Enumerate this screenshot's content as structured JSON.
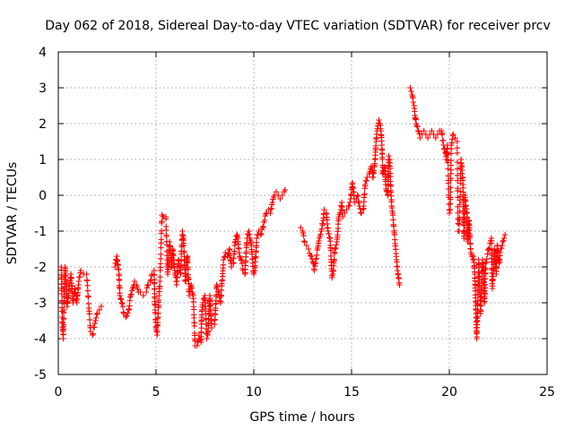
{
  "chart_data": {
    "type": "scatter",
    "title": "Day 062 of 2018, Sidereal Day-to-day VTEC variation (SDTVAR) for receiver prcv",
    "xlabel": "GPS time / hours",
    "ylabel": "SDTVAR / TECUs",
    "xlim": [
      0,
      25
    ],
    "ylim": [
      -5,
      4
    ],
    "xticks": [
      "0",
      "5",
      "10",
      "15",
      "20",
      "25"
    ],
    "yticks": [
      "-5",
      "-4",
      "-3",
      "-2",
      "-1",
      "0",
      "1",
      "2",
      "3",
      "4"
    ],
    "grid": true,
    "marker": "+",
    "color": "#ff0000",
    "series": [
      {
        "name": "SDTVAR",
        "trace": [
          [
            0.15,
            -2.0
          ],
          [
            0.2,
            -3.4
          ],
          [
            0.25,
            -4.0
          ],
          [
            0.3,
            -2.8
          ],
          [
            0.35,
            -2.0
          ],
          [
            0.4,
            -2.4
          ],
          [
            0.45,
            -3.1
          ],
          [
            0.55,
            -2.6
          ],
          [
            0.65,
            -2.2
          ],
          [
            0.75,
            -3.0
          ],
          [
            0.85,
            -2.6
          ],
          [
            0.95,
            -3.0
          ],
          [
            1.05,
            -2.4
          ],
          [
            1.15,
            -2.1
          ],
          [
            1.3,
            -2.2
          ],
          [
            1.45,
            -2.2
          ],
          [
            1.65,
            -3.8
          ],
          [
            1.75,
            -3.9
          ],
          [
            1.9,
            -3.5
          ],
          [
            2.0,
            -3.3
          ],
          [
            2.1,
            -3.2
          ],
          [
            2.2,
            -3.1
          ],
          [
            2.9,
            -2.0
          ],
          [
            3.0,
            -1.7
          ],
          [
            3.1,
            -2.2
          ],
          [
            3.15,
            -2.8
          ],
          [
            3.25,
            -3.0
          ],
          [
            3.35,
            -3.3
          ],
          [
            3.45,
            -3.4
          ],
          [
            3.6,
            -3.2
          ],
          [
            3.7,
            -2.8
          ],
          [
            3.8,
            -2.6
          ],
          [
            3.9,
            -2.4
          ],
          [
            4.0,
            -2.5
          ],
          [
            4.1,
            -2.7
          ],
          [
            4.2,
            -2.7
          ],
          [
            4.35,
            -2.8
          ],
          [
            4.5,
            -2.7
          ],
          [
            4.6,
            -2.5
          ],
          [
            4.7,
            -2.4
          ],
          [
            4.8,
            -2.2
          ],
          [
            4.9,
            -2.1
          ],
          [
            4.95,
            -3.2
          ],
          [
            5.0,
            -3.7
          ],
          [
            5.05,
            -3.9
          ],
          [
            5.1,
            -3.4
          ],
          [
            5.15,
            -2.8
          ],
          [
            5.2,
            -2.4
          ],
          [
            5.3,
            -0.55
          ],
          [
            5.35,
            -0.6
          ],
          [
            5.4,
            -0.6
          ],
          [
            5.5,
            -0.6
          ],
          [
            5.6,
            -2.2
          ],
          [
            5.7,
            -1.3
          ],
          [
            5.8,
            -2.0
          ],
          [
            5.85,
            -1.5
          ],
          [
            5.95,
            -2.1
          ],
          [
            6.05,
            -2.5
          ],
          [
            6.15,
            -1.8
          ],
          [
            6.25,
            -2.2
          ],
          [
            6.35,
            -1.0
          ],
          [
            6.4,
            -1.2
          ],
          [
            6.5,
            -2.4
          ],
          [
            6.55,
            -2.0
          ],
          [
            6.6,
            -1.7
          ],
          [
            6.7,
            -2.8
          ],
          [
            6.8,
            -2.5
          ],
          [
            6.9,
            -2.8
          ],
          [
            7.0,
            -4.2
          ],
          [
            7.1,
            -4.2
          ],
          [
            7.2,
            -3.9
          ],
          [
            7.3,
            -4.1
          ],
          [
            7.35,
            -3.2
          ],
          [
            7.4,
            -3.0
          ],
          [
            7.5,
            -2.8
          ],
          [
            7.6,
            -4.0
          ],
          [
            7.65,
            -3.9
          ],
          [
            7.75,
            -2.8
          ],
          [
            7.85,
            -3.7
          ],
          [
            8.0,
            -3.6
          ],
          [
            8.1,
            -2.5
          ],
          [
            8.2,
            -2.7
          ],
          [
            8.3,
            -3.0
          ],
          [
            8.45,
            -1.8
          ],
          [
            8.55,
            -1.6
          ],
          [
            8.65,
            -1.7
          ],
          [
            8.75,
            -1.5
          ],
          [
            8.85,
            -2.0
          ],
          [
            8.95,
            -1.9
          ],
          [
            9.05,
            -1.3
          ],
          [
            9.15,
            -1.1
          ],
          [
            9.25,
            -1.6
          ],
          [
            9.35,
            -1.8
          ],
          [
            9.45,
            -2.1
          ],
          [
            9.55,
            -2.2
          ],
          [
            9.65,
            -1.2
          ],
          [
            9.75,
            -1.0
          ],
          [
            9.85,
            -1.3
          ],
          [
            10.0,
            -2.2
          ],
          [
            10.05,
            -2.1
          ],
          [
            10.15,
            -1.2
          ],
          [
            10.25,
            -1.0
          ],
          [
            10.35,
            -1.1
          ],
          [
            10.45,
            -0.9
          ],
          [
            10.55,
            -0.7
          ],
          [
            10.65,
            -0.5
          ],
          [
            10.75,
            -0.4
          ],
          [
            10.85,
            -0.5
          ],
          [
            10.95,
            -0.2
          ],
          [
            11.05,
            0.0
          ],
          [
            11.15,
            0.1
          ],
          [
            11.25,
            0.0
          ],
          [
            11.35,
            -0.1
          ],
          [
            11.45,
            0.0
          ],
          [
            11.55,
            0.1
          ],
          [
            11.6,
            0.15
          ],
          [
            12.4,
            -0.9
          ],
          [
            12.5,
            -1.0
          ],
          [
            12.6,
            -1.3
          ],
          [
            12.7,
            -1.4
          ],
          [
            12.8,
            -1.5
          ],
          [
            12.95,
            -1.7
          ],
          [
            13.05,
            -1.9
          ],
          [
            13.1,
            -2.1
          ],
          [
            13.35,
            -1.2
          ],
          [
            13.45,
            -1.0
          ],
          [
            13.55,
            -0.7
          ],
          [
            13.6,
            -0.4
          ],
          [
            13.7,
            -0.5
          ],
          [
            13.8,
            -1.0
          ],
          [
            13.9,
            -1.2
          ],
          [
            14.0,
            -2.3
          ],
          [
            14.05,
            -2.2
          ],
          [
            14.15,
            -1.5
          ],
          [
            14.25,
            -1.3
          ],
          [
            14.35,
            -0.6
          ],
          [
            14.45,
            -0.4
          ],
          [
            14.5,
            -0.2
          ],
          [
            14.55,
            -0.6
          ],
          [
            14.65,
            -0.5
          ],
          [
            14.75,
            -0.4
          ],
          [
            14.85,
            -0.3
          ],
          [
            14.95,
            -0.1
          ],
          [
            15.05,
            0.35
          ],
          [
            15.15,
            -0.2
          ],
          [
            15.25,
            -0.1
          ],
          [
            15.3,
            0.0
          ],
          [
            15.4,
            -0.3
          ],
          [
            15.5,
            -0.5
          ],
          [
            15.6,
            -0.4
          ],
          [
            15.7,
            0.3
          ],
          [
            15.8,
            0.5
          ],
          [
            15.9,
            0.6
          ],
          [
            16.0,
            0.8
          ],
          [
            16.05,
            0.7
          ],
          [
            16.1,
            0.5
          ],
          [
            16.2,
            1.0
          ],
          [
            16.25,
            1.5
          ],
          [
            16.3,
            1.8
          ],
          [
            16.4,
            2.1
          ],
          [
            16.45,
            2.0
          ],
          [
            16.5,
            1.8
          ],
          [
            16.55,
            1.4
          ],
          [
            16.6,
            0.6
          ],
          [
            16.7,
            0.8
          ],
          [
            16.75,
            0.3
          ],
          [
            16.8,
            0.1
          ],
          [
            16.85,
            0.0
          ],
          [
            16.9,
            1.1
          ],
          [
            16.95,
            1.0
          ],
          [
            17.05,
            -0.3
          ],
          [
            17.1,
            -0.5
          ],
          [
            17.3,
            -1.8
          ],
          [
            17.35,
            -2.1
          ],
          [
            17.4,
            -2.3
          ],
          [
            17.45,
            -2.5
          ],
          [
            18.0,
            3.0
          ],
          [
            18.05,
            2.9
          ],
          [
            18.1,
            2.8
          ],
          [
            18.15,
            2.6
          ],
          [
            18.2,
            2.5
          ],
          [
            18.3,
            2.0
          ],
          [
            18.4,
            1.8
          ],
          [
            18.5,
            1.6
          ],
          [
            18.6,
            1.7
          ],
          [
            18.7,
            1.8
          ],
          [
            18.8,
            1.7
          ],
          [
            18.9,
            1.6
          ],
          [
            19.0,
            1.7
          ],
          [
            19.1,
            1.8
          ],
          [
            19.2,
            1.7
          ],
          [
            19.3,
            1.6
          ],
          [
            19.4,
            1.7
          ],
          [
            19.5,
            1.8
          ],
          [
            19.6,
            1.8
          ],
          [
            19.7,
            1.4
          ],
          [
            19.8,
            1.2
          ],
          [
            19.85,
            1.0
          ],
          [
            19.9,
            1.4
          ],
          [
            20.0,
            -0.5
          ],
          [
            20.05,
            -0.4
          ],
          [
            20.1,
            1.4
          ],
          [
            20.2,
            1.7
          ],
          [
            20.3,
            1.6
          ],
          [
            20.4,
            1.5
          ],
          [
            20.45,
            -1.0
          ],
          [
            20.5,
            -1.0
          ],
          [
            20.6,
            1.0
          ],
          [
            20.65,
            0.7
          ],
          [
            20.7,
            0.3
          ],
          [
            20.75,
            -1.2
          ],
          [
            20.8,
            0.0
          ],
          [
            20.85,
            -0.3
          ],
          [
            20.9,
            -0.5
          ],
          [
            20.95,
            -1.3
          ],
          [
            21.0,
            -0.7
          ],
          [
            21.1,
            -1.6
          ],
          [
            21.2,
            -1.8
          ],
          [
            21.25,
            -1.7
          ],
          [
            21.3,
            -2.2
          ],
          [
            21.35,
            -3.0
          ],
          [
            21.4,
            -4.0
          ],
          [
            21.45,
            -3.2
          ],
          [
            21.5,
            -1.8
          ],
          [
            21.6,
            -3.3
          ],
          [
            21.7,
            -1.8
          ],
          [
            21.75,
            -2.0
          ],
          [
            21.8,
            -3.0
          ],
          [
            21.85,
            -1.9
          ],
          [
            22.15,
            -1.2
          ],
          [
            22.2,
            -2.6
          ],
          [
            22.25,
            -2.2
          ],
          [
            22.3,
            -1.5
          ],
          [
            22.4,
            -2.2
          ],
          [
            22.45,
            -1.4
          ],
          [
            22.55,
            -1.9
          ],
          [
            22.6,
            -1.6
          ],
          [
            22.7,
            -1.4
          ],
          [
            22.8,
            -1.2
          ],
          [
            22.85,
            -1.1
          ]
        ]
      }
    ]
  }
}
